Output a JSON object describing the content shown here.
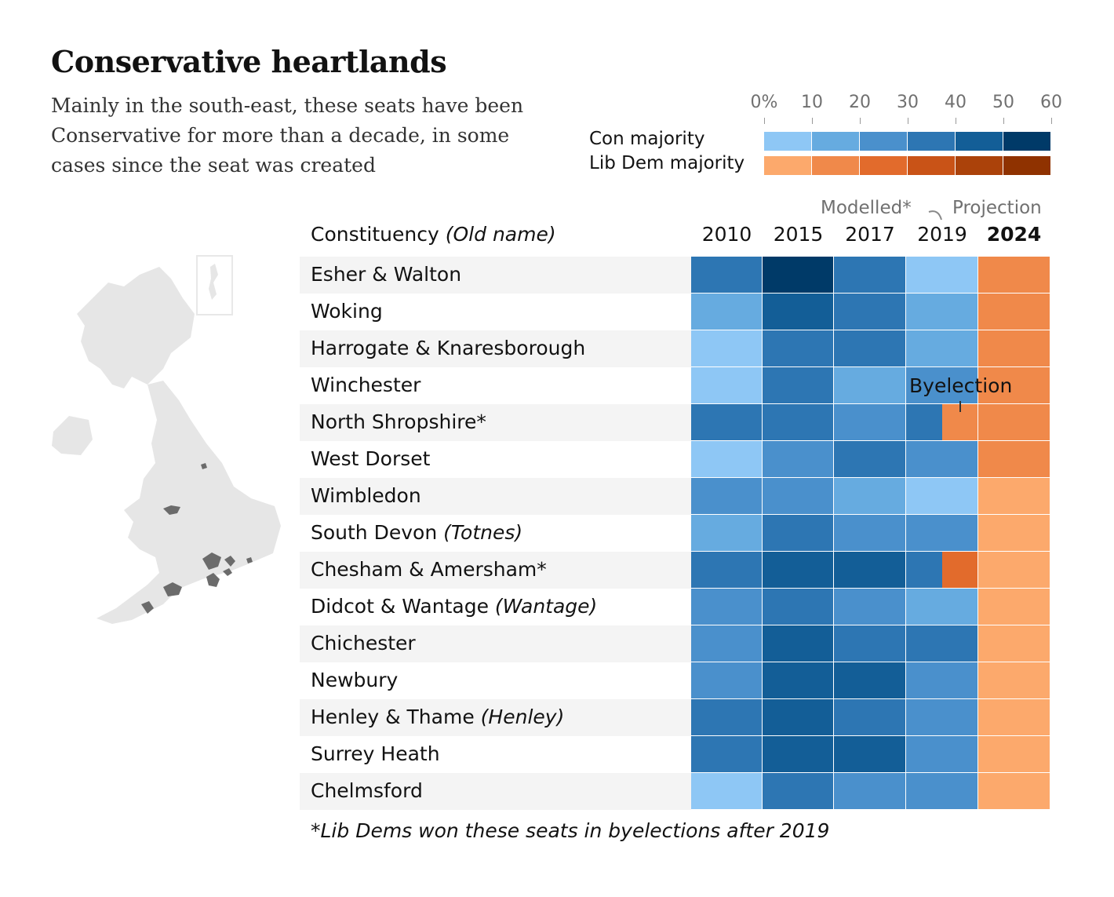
{
  "title": "Conservative heartlands",
  "subtitle": "Mainly in the south-east, these seats have been Conservative for more than a decade, in some cases since the seat was created",
  "legend": {
    "ticks": [
      "0%",
      "10",
      "20",
      "30",
      "40",
      "50",
      "60"
    ],
    "con_label": "Con majority",
    "ld_label": "Lib Dem majority",
    "con_colors": [
      "#8ec7f5",
      "#66abe0",
      "#4a90cc",
      "#2d76b3",
      "#135e97",
      "#003a68"
    ],
    "ld_colors": [
      "#fca96c",
      "#f0894a",
      "#e26b2c",
      "#c95317",
      "#ab420a",
      "#8f3200"
    ]
  },
  "headers": {
    "constituency": "Constituency",
    "old_name": "(Old name)",
    "modelled": "Modelled*",
    "projection": "Projection"
  },
  "footnote": "*Lib Dems won these seats in byelections after 2019",
  "annotation": "Byelection",
  "map": {
    "icon": "uk-map-icon"
  },
  "chart_data": {
    "type": "heatmap",
    "title": "Conservative heartlands",
    "years": [
      "2010",
      "2015",
      "2017",
      "2019",
      "2024"
    ],
    "value_unit": "majority %",
    "scale": [
      0,
      60
    ],
    "rows": [
      {
        "name": "Esher & Walton",
        "old": "",
        "cells": [
          [
            "con",
            35
          ],
          [
            "con",
            55
          ],
          [
            "con",
            35
          ],
          [
            "con",
            5
          ],
          [
            "ld",
            15
          ]
        ]
      },
      {
        "name": "Woking",
        "old": "",
        "cells": [
          [
            "con",
            15
          ],
          [
            "con",
            45
          ],
          [
            "con",
            35
          ],
          [
            "con",
            15
          ],
          [
            "ld",
            15
          ]
        ]
      },
      {
        "name": "Harrogate & Knaresborough",
        "old": "",
        "cells": [
          [
            "con",
            5
          ],
          [
            "con",
            35
          ],
          [
            "con",
            35
          ],
          [
            "con",
            15
          ],
          [
            "ld",
            15
          ]
        ]
      },
      {
        "name": "Winchester",
        "old": "",
        "cells": [
          [
            "con",
            5
          ],
          [
            "con",
            35
          ],
          [
            "con",
            15
          ],
          [
            "con",
            25
          ],
          [
            "ld",
            15
          ]
        ]
      },
      {
        "name": "North Shropshire*",
        "old": "",
        "cells": [
          [
            "con",
            35
          ],
          [
            "con",
            35
          ],
          [
            "con",
            25
          ],
          [
            "con",
            35
          ],
          [
            "ld",
            15
          ]
        ],
        "byelection": [
          "ld",
          15
        ]
      },
      {
        "name": "West Dorset",
        "old": "",
        "cells": [
          [
            "con",
            5
          ],
          [
            "con",
            25
          ],
          [
            "con",
            35
          ],
          [
            "con",
            25
          ],
          [
            "ld",
            15
          ]
        ]
      },
      {
        "name": "Wimbledon",
        "old": "",
        "cells": [
          [
            "con",
            25
          ],
          [
            "con",
            25
          ],
          [
            "con",
            15
          ],
          [
            "con",
            5
          ],
          [
            "ld",
            5
          ]
        ]
      },
      {
        "name": "South Devon",
        "old": "(Totnes)",
        "cells": [
          [
            "con",
            15
          ],
          [
            "con",
            35
          ],
          [
            "con",
            25
          ],
          [
            "con",
            25
          ],
          [
            "ld",
            5
          ]
        ]
      },
      {
        "name": "Chesham & Amersham*",
        "old": "",
        "cells": [
          [
            "con",
            35
          ],
          [
            "con",
            45
          ],
          [
            "con",
            45
          ],
          [
            "con",
            35
          ],
          [
            "ld",
            5
          ]
        ],
        "byelection": [
          "ld",
          25
        ]
      },
      {
        "name": "Didcot & Wantage",
        "old": "(Wantage)",
        "cells": [
          [
            "con",
            25
          ],
          [
            "con",
            35
          ],
          [
            "con",
            25
          ],
          [
            "con",
            15
          ],
          [
            "ld",
            5
          ]
        ]
      },
      {
        "name": "Chichester",
        "old": "",
        "cells": [
          [
            "con",
            25
          ],
          [
            "con",
            45
          ],
          [
            "con",
            35
          ],
          [
            "con",
            35
          ],
          [
            "ld",
            5
          ]
        ]
      },
      {
        "name": "Newbury",
        "old": "",
        "cells": [
          [
            "con",
            25
          ],
          [
            "con",
            45
          ],
          [
            "con",
            45
          ],
          [
            "con",
            25
          ],
          [
            "ld",
            5
          ]
        ]
      },
      {
        "name": "Henley & Thame",
        "old": "(Henley)",
        "cells": [
          [
            "con",
            35
          ],
          [
            "con",
            45
          ],
          [
            "con",
            35
          ],
          [
            "con",
            25
          ],
          [
            "ld",
            5
          ]
        ]
      },
      {
        "name": "Surrey Heath",
        "old": "",
        "cells": [
          [
            "con",
            35
          ],
          [
            "con",
            45
          ],
          [
            "con",
            45
          ],
          [
            "con",
            25
          ],
          [
            "ld",
            5
          ]
        ]
      },
      {
        "name": "Chelmsford",
        "old": "",
        "cells": [
          [
            "con",
            5
          ],
          [
            "con",
            35
          ],
          [
            "con",
            25
          ],
          [
            "con",
            25
          ],
          [
            "ld",
            5
          ]
        ]
      }
    ]
  }
}
